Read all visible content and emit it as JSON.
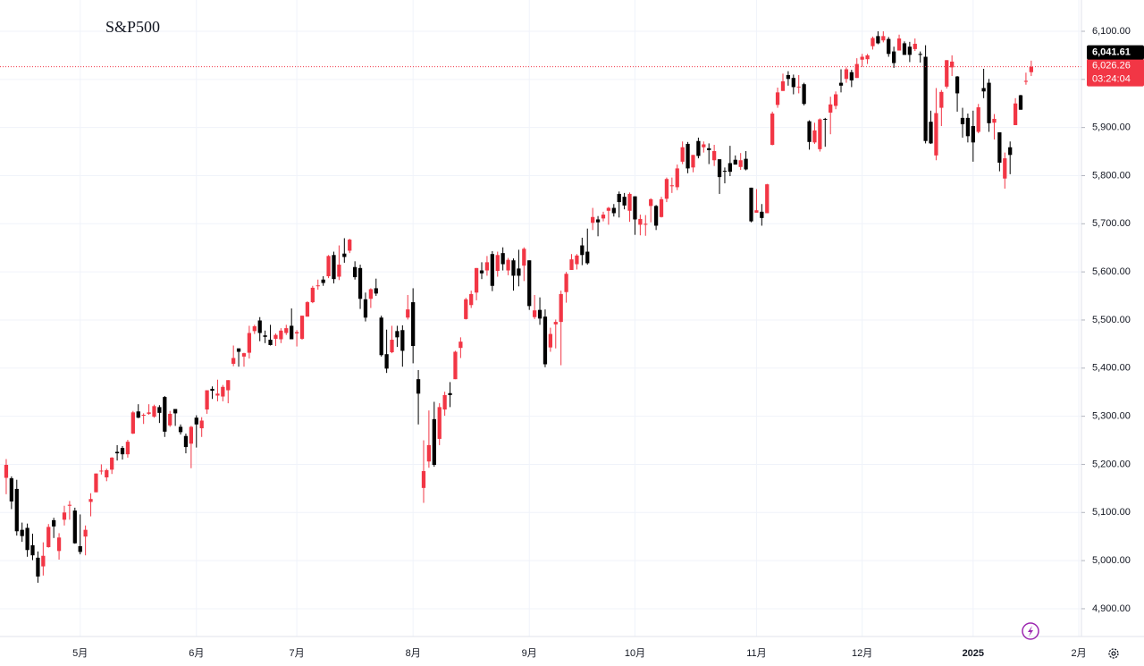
{
  "chart_data": {
    "type": "candlestick",
    "title": "S&P500",
    "up_color": "#f23645",
    "down_color": "#000000",
    "grid": true,
    "ylim": [
      4842.3,
      6165
    ],
    "yticks": [
      {
        "value": 4900,
        "label": "4,900.00"
      },
      {
        "value": 5000,
        "label": "5,000.00"
      },
      {
        "value": 5100,
        "label": "5,100.00"
      },
      {
        "value": 5200,
        "label": "5,200.00"
      },
      {
        "value": 5300,
        "label": "5,300.00"
      },
      {
        "value": 5400,
        "label": "5,400.00"
      },
      {
        "value": 5500,
        "label": "5,500.00"
      },
      {
        "value": 5600,
        "label": "5,600.00"
      },
      {
        "value": 5700,
        "label": "5,700.00"
      },
      {
        "value": 5800,
        "label": "5,800.00"
      },
      {
        "value": 5900,
        "label": "5,900.00"
      },
      {
        "value": 6000,
        "label": "6,000.00"
      },
      {
        "value": 6100,
        "label": "6,100.00"
      }
    ],
    "last_price": {
      "value": 6026.26,
      "label": "6,026.26"
    },
    "countdown": "03:24:04",
    "marker_price": {
      "value": 6041.61,
      "label": "6,041.61"
    },
    "categories": [
      null,
      null,
      null,
      null,
      null,
      null,
      null,
      null,
      null,
      null,
      null,
      null,
      null,
      null,
      "5月",
      null,
      null,
      null,
      null,
      null,
      null,
      null,
      null,
      null,
      null,
      null,
      null,
      null,
      null,
      null,
      null,
      null,
      null,
      null,
      null,
      null,
      "6月",
      null,
      null,
      null,
      null,
      null,
      null,
      null,
      null,
      null,
      null,
      null,
      null,
      null,
      null,
      null,
      null,
      null,
      null,
      "7月",
      null,
      null,
      null,
      null,
      null,
      null,
      null,
      null,
      null,
      null,
      null,
      null,
      null,
      null,
      null,
      null,
      null,
      null,
      null,
      null,
      null,
      "8月",
      null,
      null,
      null,
      null,
      null,
      null,
      null,
      null,
      null,
      null,
      null,
      null,
      null,
      null,
      null,
      null,
      null,
      null,
      null,
      null,
      null,
      "9月",
      null,
      null,
      null,
      null,
      null,
      null,
      null,
      null,
      null,
      null,
      null,
      null,
      null,
      null,
      null,
      null,
      null,
      null,
      null,
      "10月",
      null,
      null,
      null,
      null,
      null,
      null,
      null,
      null,
      null,
      null,
      null,
      null,
      null,
      null,
      null,
      null,
      null,
      null,
      null,
      null,
      null,
      null,
      "11月",
      null,
      null,
      null,
      null,
      null,
      null,
      null,
      null,
      null,
      null,
      null,
      null,
      null,
      null,
      null,
      null,
      null,
      null,
      null,
      "12月",
      null,
      null,
      null,
      null,
      null,
      null,
      null,
      null,
      null,
      null,
      null,
      null,
      null,
      null,
      null,
      null,
      null,
      null,
      null,
      null,
      "2025",
      null,
      null,
      null,
      null,
      null,
      null,
      null,
      null,
      null,
      null,
      null,
      null,
      null,
      null,
      null,
      null,
      null,
      null,
      null,
      "2月"
    ],
    "candles": [
      [
        5172,
        5211,
        5138,
        5199
      ],
      [
        5171,
        5175,
        5107,
        5123
      ],
      [
        5149,
        5168,
        5052,
        5061
      ],
      [
        5064,
        5079,
        5039,
        5051
      ],
      [
        5068,
        5077,
        5008,
        5022
      ],
      [
        5032,
        5056,
        5001,
        5011
      ],
      [
        5006,
        5019,
        4954,
        4967
      ],
      [
        4988,
        5038,
        4969,
        5010
      ],
      [
        5028,
        5076,
        5027,
        5070
      ],
      [
        5084,
        5089,
        5047,
        5071
      ],
      [
        5020,
        5057,
        5002,
        5048
      ],
      [
        5085,
        5114,
        5073,
        5100
      ],
      [
        5114,
        5124,
        5085,
        5116
      ],
      [
        5104,
        5110,
        5035,
        5036
      ],
      [
        5030,
        5096,
        5013,
        5018
      ],
      [
        5050,
        5073,
        5011,
        5064
      ],
      [
        5122,
        5140,
        5092,
        5128
      ],
      [
        5142,
        5181,
        5142,
        5181
      ],
      [
        5187,
        5200,
        5179,
        5187
      ],
      [
        5173,
        5191,
        5165,
        5188
      ],
      [
        5189,
        5215,
        5180,
        5214
      ],
      [
        5226,
        5240,
        5208,
        5223
      ],
      [
        5234,
        5238,
        5210,
        5221
      ],
      [
        5221,
        5251,
        5214,
        5247
      ],
      [
        5264,
        5311,
        5263,
        5308
      ],
      [
        5310,
        5325,
        5296,
        5297
      ],
      [
        5303,
        5306,
        5284,
        5303
      ],
      [
        5305,
        5325,
        5303,
        5308
      ],
      [
        5299,
        5324,
        5297,
        5321
      ],
      [
        5319,
        5323,
        5286,
        5307
      ],
      [
        5340,
        5342,
        5257,
        5268
      ],
      [
        5281,
        5311,
        5278,
        5305
      ],
      [
        5315,
        5315,
        5280,
        5306
      ],
      [
        5278,
        5283,
        5262,
        5267
      ],
      [
        5259,
        5264,
        5223,
        5236
      ],
      [
        5243,
        5280,
        5192,
        5278
      ],
      [
        5297,
        5302,
        5235,
        5283
      ],
      [
        5275,
        5298,
        5257,
        5291
      ],
      [
        5314,
        5354,
        5305,
        5354
      ],
      [
        5357,
        5362,
        5336,
        5353
      ],
      [
        5343,
        5376,
        5331,
        5347
      ],
      [
        5341,
        5365,
        5331,
        5361
      ],
      [
        5354,
        5375,
        5327,
        5375
      ],
      [
        5409,
        5447,
        5404,
        5421
      ],
      [
        5441,
        5441,
        5403,
        5434
      ],
      [
        5424,
        5432,
        5403,
        5431
      ],
      [
        5432,
        5488,
        5420,
        5473
      ],
      [
        5477,
        5490,
        5471,
        5487
      ],
      [
        5499,
        5506,
        5456,
        5473
      ],
      [
        5468,
        5478,
        5452,
        5465
      ],
      [
        5459,
        5490,
        5447,
        5448
      ],
      [
        5461,
        5472,
        5446,
        5469
      ],
      [
        5460,
        5483,
        5452,
        5478
      ],
      [
        5473,
        5490,
        5469,
        5483
      ],
      [
        5488,
        5524,
        5460,
        5460
      ],
      [
        5472,
        5479,
        5445,
        5475
      ],
      [
        5461,
        5509,
        5459,
        5509
      ],
      [
        5507,
        5539,
        5507,
        5537
      ],
      [
        5537,
        5571,
        5535,
        5567
      ],
      [
        5572,
        5584,
        5563,
        5572
      ],
      [
        5584,
        5591,
        5571,
        5577
      ],
      [
        5591,
        5635,
        5587,
        5633
      ],
      [
        5635,
        5642,
        5576,
        5585
      ],
      [
        5590,
        5655,
        5583,
        5615
      ],
      [
        5638,
        5670,
        5619,
        5631
      ],
      [
        5644,
        5669,
        5639,
        5667
      ],
      [
        5610,
        5622,
        5584,
        5589
      ],
      [
        5608,
        5615,
        5523,
        5544
      ],
      [
        5543,
        5557,
        5497,
        5505
      ],
      [
        5544,
        5566,
        5525,
        5564
      ],
      [
        5566,
        5586,
        5550,
        5555
      ],
      [
        5505,
        5509,
        5424,
        5427
      ],
      [
        5429,
        5480,
        5390,
        5399
      ],
      [
        5433,
        5488,
        5431,
        5459
      ],
      [
        5477,
        5488,
        5444,
        5464
      ],
      [
        5479,
        5489,
        5403,
        5436
      ],
      [
        5505,
        5552,
        5501,
        5522
      ],
      [
        5537,
        5566,
        5410,
        5446
      ],
      [
        5377,
        5396,
        5283,
        5347
      ],
      [
        5151,
        5250,
        5120,
        5186
      ],
      [
        5206,
        5312,
        5193,
        5240
      ],
      [
        5294,
        5330,
        5195,
        5199
      ],
      [
        5253,
        5327,
        5240,
        5319
      ],
      [
        5314,
        5351,
        5301,
        5344
      ],
      [
        5348,
        5371,
        5319,
        5344
      ],
      [
        5377,
        5436,
        5377,
        5434
      ],
      [
        5442,
        5464,
        5421,
        5455
      ],
      [
        5502,
        5546,
        5501,
        5543
      ],
      [
        5531,
        5561,
        5525,
        5554
      ],
      [
        5557,
        5608,
        5541,
        5608
      ],
      [
        5603,
        5620,
        5585,
        5597
      ],
      [
        5603,
        5633,
        5592,
        5620
      ],
      [
        5637,
        5643,
        5560,
        5571
      ],
      [
        5602,
        5642,
        5590,
        5635
      ],
      [
        5639,
        5651,
        5603,
        5616
      ],
      [
        5603,
        5629,
        5593,
        5625
      ],
      [
        5624,
        5628,
        5561,
        5592
      ],
      [
        5607,
        5646,
        5570,
        5592
      ],
      [
        5613,
        5651,
        5581,
        5648
      ],
      [
        5624,
        5624,
        5521,
        5529
      ],
      [
        5506,
        5552,
        5502,
        5520
      ],
      [
        5521,
        5547,
        5490,
        5503
      ],
      [
        5507,
        5522,
        5402,
        5408
      ],
      [
        5443,
        5484,
        5434,
        5471
      ],
      [
        5491,
        5501,
        5441,
        5496
      ],
      [
        5496,
        5561,
        5406,
        5554
      ],
      [
        5558,
        5600,
        5536,
        5596
      ],
      [
        5604,
        5637,
        5604,
        5626
      ],
      [
        5616,
        5637,
        5605,
        5634
      ],
      [
        5655,
        5671,
        5614,
        5635
      ],
      [
        5642,
        5690,
        5615,
        5618
      ],
      [
        5702,
        5733,
        5687,
        5714
      ],
      [
        5709,
        5716,
        5674,
        5703
      ],
      [
        5711,
        5725,
        5705,
        5719
      ],
      [
        5727,
        5735,
        5698,
        5733
      ],
      [
        5733,
        5741,
        5715,
        5722
      ],
      [
        5762,
        5767,
        5713,
        5745
      ],
      [
        5756,
        5764,
        5730,
        5738
      ],
      [
        5727,
        5765,
        5704,
        5762
      ],
      [
        5757,
        5757,
        5677,
        5709
      ],
      [
        5698,
        5719,
        5676,
        5710
      ],
      [
        5698,
        5718,
        5675,
        5700
      ],
      [
        5737,
        5753,
        5703,
        5751
      ],
      [
        5737,
        5739,
        5687,
        5696
      ],
      [
        5714,
        5756,
        5713,
        5751
      ],
      [
        5752,
        5796,
        5745,
        5793
      ],
      [
        5778,
        5796,
        5764,
        5780
      ],
      [
        5776,
        5823,
        5770,
        5815
      ],
      [
        5829,
        5871,
        5824,
        5859
      ],
      [
        5866,
        5870,
        5805,
        5815
      ],
      [
        5817,
        5843,
        5807,
        5843
      ],
      [
        5872,
        5879,
        5836,
        5841
      ],
      [
        5859,
        5871,
        5848,
        5865
      ],
      [
        5857,
        5867,
        5824,
        5853
      ],
      [
        5832,
        5864,
        5820,
        5851
      ],
      [
        5834,
        5834,
        5762,
        5797
      ],
      [
        5810,
        5817,
        5784,
        5809
      ],
      [
        5826,
        5862,
        5799,
        5808
      ],
      [
        5833,
        5842,
        5823,
        5823
      ],
      [
        5818,
        5847,
        5812,
        5832
      ],
      [
        5835,
        5851,
        5811,
        5813
      ],
      [
        5775,
        5775,
        5703,
        5705
      ],
      [
        5723,
        5772,
        5723,
        5728
      ],
      [
        5725,
        5741,
        5696,
        5712
      ],
      [
        5722,
        5783,
        5722,
        5782
      ],
      [
        5864,
        5933,
        5863,
        5929
      ],
      [
        5947,
        5983,
        5941,
        5973
      ],
      [
        5976,
        6012,
        5976,
        5996
      ],
      [
        6009,
        6017,
        5987,
        6001
      ],
      [
        6003,
        6010,
        5969,
        5984
      ],
      [
        5985,
        6009,
        5971,
        5985
      ],
      [
        5990,
        5993,
        5946,
        5949
      ],
      [
        5913,
        5915,
        5854,
        5870
      ],
      [
        5869,
        5910,
        5866,
        5894
      ],
      [
        5855,
        5919,
        5850,
        5917
      ],
      [
        5918,
        5920,
        5860,
        5917
      ],
      [
        5931,
        5964,
        5886,
        5948
      ],
      [
        5945,
        5975,
        5938,
        5969
      ],
      [
        5993,
        6021,
        5973,
        5987
      ],
      [
        6001,
        6025,
        5993,
        6021
      ],
      [
        6015,
        6020,
        5984,
        5998
      ],
      [
        6003,
        6044,
        6003,
        6032
      ],
      [
        6041,
        6053,
        6026,
        6047
      ],
      [
        6042,
        6053,
        6032,
        6050
      ],
      [
        6069,
        6089,
        6062,
        6086
      ],
      [
        6090,
        6100,
        6073,
        6075
      ],
      [
        6081,
        6100,
        6077,
        6090
      ],
      [
        6084,
        6088,
        6047,
        6053
      ],
      [
        6058,
        6068,
        6024,
        6034
      ],
      [
        6060,
        6093,
        6060,
        6085
      ],
      [
        6075,
        6079,
        6051,
        6051
      ],
      [
        6068,
        6078,
        6036,
        6051
      ],
      [
        6063,
        6085,
        6059,
        6074
      ],
      [
        6053,
        6058,
        6035,
        6051
      ],
      [
        6047,
        6071,
        5867,
        5872
      ],
      [
        5912,
        5935,
        5866,
        5867
      ],
      [
        5842,
        5982,
        5832,
        5930
      ],
      [
        5941,
        5978,
        5903,
        5974
      ],
      [
        5985,
        6040,
        5981,
        6040
      ],
      [
        6025,
        6050,
        6007,
        6037
      ],
      [
        6006,
        6007,
        5933,
        5971
      ],
      [
        5920,
        5941,
        5879,
        5907
      ],
      [
        5920,
        5929,
        5869,
        5882
      ],
      [
        5903,
        5935,
        5829,
        5869
      ],
      [
        5891,
        5949,
        5888,
        5942
      ],
      [
        5982,
        6022,
        5961,
        5975
      ],
      [
        5993,
        6001,
        5891,
        5909
      ],
      [
        5910,
        5928,
        5875,
        5918
      ],
      [
        5890,
        5890,
        5809,
        5827
      ],
      [
        5794,
        5848,
        5773,
        5836
      ],
      [
        5859,
        5871,
        5803,
        5843
      ],
      [
        5905,
        5961,
        5905,
        5950
      ],
      [
        5967,
        5968,
        5937,
        5937
      ],
      [
        5995,
        6014,
        5989,
        5997
      ],
      [
        6015,
        6039,
        6007,
        6026.26
      ],
      null,
      null,
      null,
      null,
      null,
      null,
      null,
      null,
      null
    ]
  }
}
